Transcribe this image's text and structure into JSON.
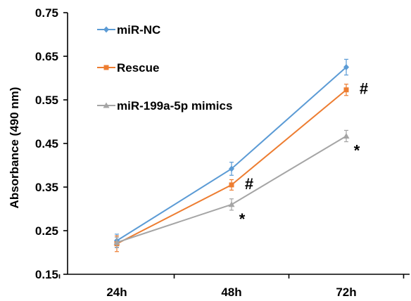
{
  "chart_data": {
    "type": "line",
    "title": "",
    "xlabel": "",
    "ylabel": "Absorbance (490 nm)",
    "categories": [
      "24h",
      "48h",
      "72h"
    ],
    "ylim": [
      0.15,
      0.75
    ],
    "yticks": [
      "0.15",
      "0.25",
      "0.35",
      "0.45",
      "0.55",
      "0.65",
      "0.75"
    ],
    "grid": false,
    "legend_position": "top-left",
    "series": [
      {
        "name": "miR-NC",
        "values": [
          0.227,
          0.392,
          0.625
        ],
        "errors": [
          0.015,
          0.015,
          0.018
        ],
        "color": "#5B9BD5",
        "marker": "diamond"
      },
      {
        "name": "Rescue",
        "values": [
          0.22,
          0.355,
          0.573
        ],
        "errors": [
          0.018,
          0.012,
          0.013
        ],
        "color": "#ED7D31",
        "marker": "square"
      },
      {
        "name": "miR-199a-5p mimics",
        "values": [
          0.223,
          0.31,
          0.467
        ],
        "errors": [
          0.012,
          0.013,
          0.013
        ],
        "color": "#A5A5A5",
        "marker": "triangle"
      }
    ],
    "annotations": [
      {
        "text": "#",
        "category": "48h",
        "series": "Rescue"
      },
      {
        "text": "#",
        "category": "72h",
        "series": "Rescue"
      },
      {
        "text": "*",
        "category": "48h",
        "series": "miR-199a-5p mimics"
      },
      {
        "text": "*",
        "category": "72h",
        "series": "miR-199a-5p mimics"
      }
    ]
  }
}
